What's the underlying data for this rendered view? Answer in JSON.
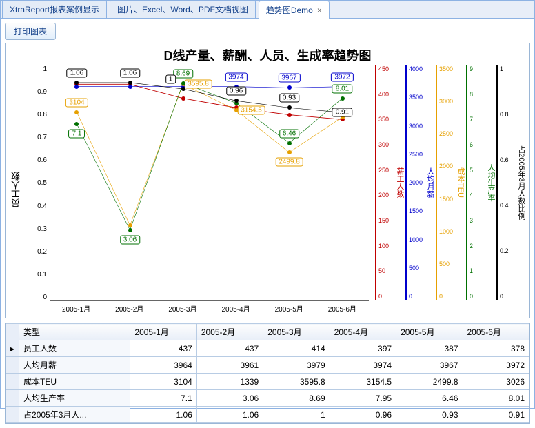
{
  "tabs": [
    {
      "label": "XtraReport报表案例显示",
      "active": false
    },
    {
      "label": "图片、Excel、Word、PDF文档视图",
      "active": false
    },
    {
      "label": "趋势图Demo",
      "active": true
    }
  ],
  "print_button": "打印图表",
  "chart": {
    "title": "D线产量、薪酬、人员、生成率趋势图",
    "x_categories": [
      "2005-1月",
      "2005-2月",
      "2005-3月",
      "2005-4月",
      "2005-5月",
      "2005-6月"
    ],
    "primary_y": {
      "label": "员工人数",
      "min": 0,
      "max": 1,
      "ticks": [
        "0",
        "0.1",
        "0.2",
        "0.3",
        "0.4",
        "0.5",
        "0.6",
        "0.7",
        "0.8",
        "0.9",
        "1"
      ]
    },
    "secondary_axes": [
      {
        "label": "薪工人数",
        "color": "#c00000",
        "ticks": [
          "0",
          "50",
          "100",
          "150",
          "200",
          "250",
          "300",
          "350",
          "400",
          "450"
        ]
      },
      {
        "label": "人均月薪",
        "color": "#0000cc",
        "ticks": [
          "0",
          "500",
          "1000",
          "1500",
          "2000",
          "2500",
          "3000",
          "3500",
          "4000"
        ]
      },
      {
        "label": "成本TEU",
        "color": "#e6a000",
        "ticks": [
          "0",
          "500",
          "1000",
          "1500",
          "2000",
          "2500",
          "3000",
          "3500"
        ]
      },
      {
        "label": "人均生产率",
        "color": "#007000",
        "ticks": [
          "0",
          "1",
          "2",
          "3",
          "4",
          "5",
          "6",
          "7",
          "8",
          "9"
        ]
      },
      {
        "label": "占2005年3月人数比例",
        "color": "#000000",
        "ticks": [
          "0",
          "0.2",
          "0.4",
          "0.6",
          "0.8",
          "1"
        ]
      }
    ],
    "series": [
      {
        "name": "员工人数",
        "color": "#c00000",
        "stroke_width": 3,
        "values": [
          437,
          437,
          414,
          397,
          387,
          378
        ],
        "y_norm": [
          0.08,
          0.08,
          0.14,
          0.18,
          0.21,
          0.23
        ],
        "labels": [
          "",
          "",
          "",
          "",
          "",
          ""
        ],
        "label_offsets": []
      },
      {
        "name": "人均月薪",
        "color": "#0000cc",
        "stroke_width": 2,
        "values": [
          3964,
          3961,
          3979,
          3974,
          3967,
          3972
        ],
        "y_norm": [
          0.09,
          0.09,
          0.09,
          0.09,
          0.095,
          0.09
        ],
        "labels": [
          "",
          "",
          "",
          "3974",
          "3967",
          "3972"
        ],
        "label_offsets": [
          [
            0,
            0
          ],
          [
            0,
            0
          ],
          [
            0,
            0
          ],
          [
            0,
            -14
          ],
          [
            0,
            -14
          ],
          [
            0,
            -14
          ]
        ]
      },
      {
        "name": "成本TEU",
        "color": "#e6a000",
        "stroke_width": 2,
        "values": [
          3104,
          1339,
          3595.8,
          3154.5,
          2499.8,
          3026
        ],
        "y_norm": [
          0.2,
          0.68,
          0.08,
          0.19,
          0.37,
          0.22
        ],
        "labels": [
          "3104",
          "",
          "3595.8",
          "3154.5",
          "2499.8",
          ""
        ],
        "label_offsets": [
          [
            0,
            -14
          ],
          [
            0,
            0
          ],
          [
            22,
            0
          ],
          [
            22,
            0
          ],
          [
            0,
            14
          ],
          [
            0,
            0
          ]
        ]
      },
      {
        "name": "人均生产率",
        "color": "#007000",
        "stroke_width": 2,
        "values": [
          7.1,
          3.06,
          8.69,
          7.95,
          6.46,
          8.01
        ],
        "y_norm": [
          0.25,
          0.7,
          0.075,
          0.16,
          0.33,
          0.14
        ],
        "labels": [
          "7.1",
          "3.06",
          "8.69",
          "",
          "6.46",
          "8.01"
        ],
        "label_offsets": [
          [
            0,
            14
          ],
          [
            0,
            14
          ],
          [
            0,
            -14
          ],
          [
            0,
            0
          ],
          [
            0,
            -14
          ],
          [
            0,
            -14
          ]
        ]
      },
      {
        "name": "占2005年3月人数比例",
        "color": "#000000",
        "stroke_width": 2,
        "values": [
          1.06,
          1.06,
          1,
          0.96,
          0.93,
          0.91
        ],
        "y_norm": [
          0.073,
          0.073,
          0.1,
          0.15,
          0.18,
          0.2
        ],
        "labels": [
          "1.06",
          "1.06",
          "1",
          "0.96",
          "0.93",
          "0.91"
        ],
        "label_offsets": [
          [
            0,
            -14
          ],
          [
            0,
            -14
          ],
          [
            -18,
            -14
          ],
          [
            0,
            -14
          ],
          [
            0,
            -14
          ],
          [
            0,
            0
          ]
        ]
      }
    ]
  },
  "table": {
    "type_col": "类型",
    "columns": [
      "2005-1月",
      "2005-2月",
      "2005-3月",
      "2005-4月",
      "2005-5月",
      "2005-6月"
    ],
    "rows": [
      {
        "label": "员工人数",
        "cells": [
          "437",
          "437",
          "414",
          "397",
          "387",
          "378"
        ]
      },
      {
        "label": "人均月薪",
        "cells": [
          "3964",
          "3961",
          "3979",
          "3974",
          "3967",
          "3972"
        ]
      },
      {
        "label": "成本TEU",
        "cells": [
          "3104",
          "1339",
          "3595.8",
          "3154.5",
          "2499.8",
          "3026"
        ]
      },
      {
        "label": "人均生产率",
        "cells": [
          "7.1",
          "3.06",
          "8.69",
          "7.95",
          "6.46",
          "8.01"
        ]
      },
      {
        "label": "占2005年3月人...",
        "cells": [
          "1.06",
          "1.06",
          "1",
          "0.96",
          "0.93",
          "0.91"
        ]
      }
    ]
  }
}
